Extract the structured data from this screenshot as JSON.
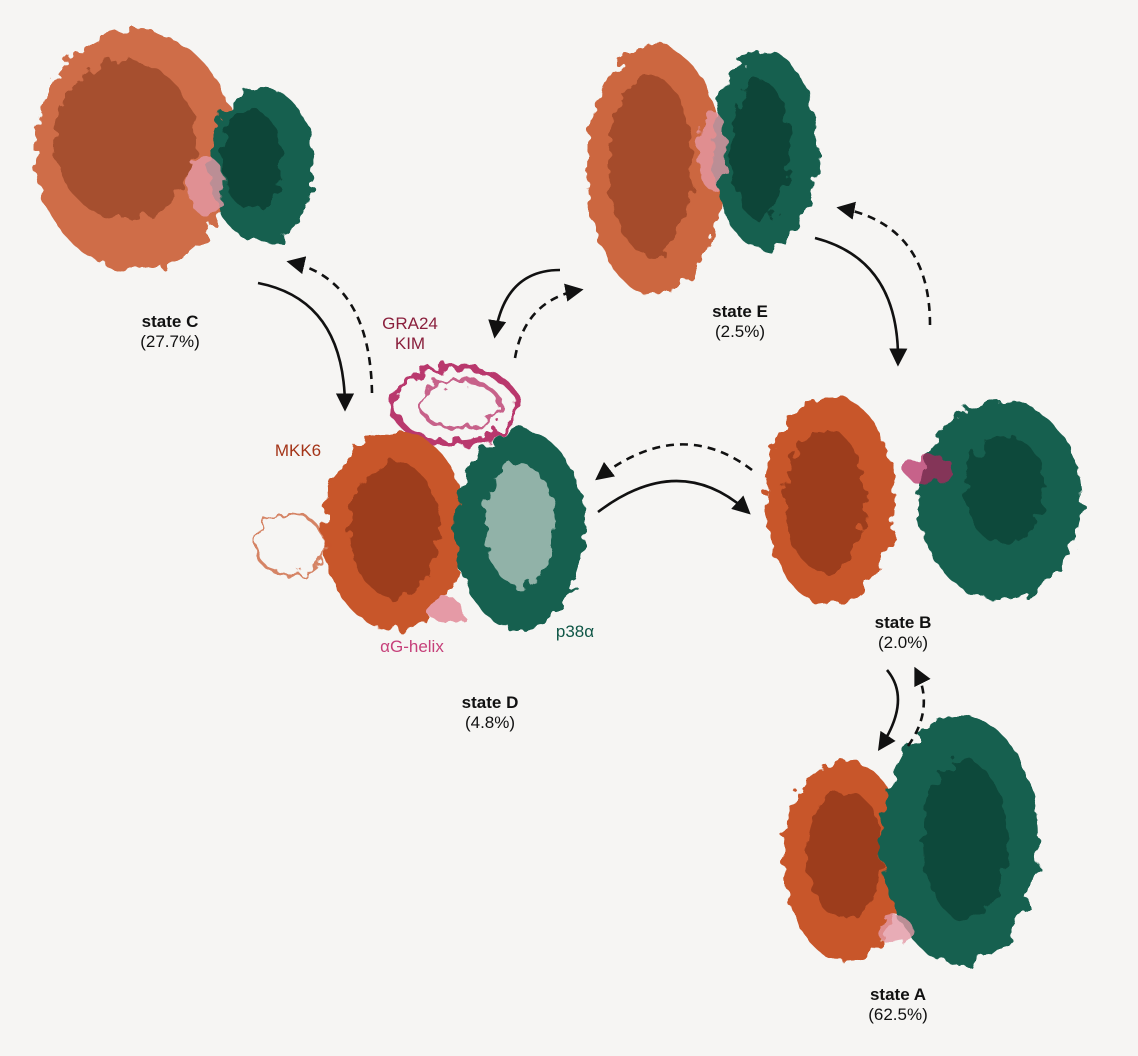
{
  "states": [
    {
      "id": "C",
      "name": "state C",
      "percent": "(27.7%)"
    },
    {
      "id": "E",
      "name": "state E",
      "percent": "(2.5%)"
    },
    {
      "id": "D",
      "name": "state D",
      "percent": "(4.8%)"
    },
    {
      "id": "B",
      "name": "state B",
      "percent": "(2.0%)"
    },
    {
      "id": "A",
      "name": "state A",
      "percent": "(62.5%)"
    }
  ],
  "component_labels": {
    "gra24_line1": "GRA24",
    "gra24_line2": "KIM",
    "mkk6": "MKK6",
    "alpha_g_helix": "αG-helix",
    "p38": "p38α"
  },
  "transitions": [
    {
      "from": "C",
      "to": "D",
      "style": "solid"
    },
    {
      "from": "D",
      "to": "C",
      "style": "dashed"
    },
    {
      "from": "E",
      "to": "D",
      "style": "solid"
    },
    {
      "from": "D",
      "to": "E",
      "style": "dashed"
    },
    {
      "from": "E",
      "to": "B",
      "style": "solid"
    },
    {
      "from": "B",
      "to": "E",
      "style": "dashed"
    },
    {
      "from": "D",
      "to": "B",
      "style": "solid"
    },
    {
      "from": "B",
      "to": "D",
      "style": "dashed"
    },
    {
      "from": "B",
      "to": "A",
      "style": "solid"
    },
    {
      "from": "A",
      "to": "B",
      "style": "dashed"
    }
  ],
  "colors": {
    "mkk6": "#c8562b",
    "mkk6_dark": "#7a2c14",
    "p38": "#17604f",
    "p38_dark": "#0b3a2f",
    "gra24": "#b3245e",
    "helix": "#e59aa6",
    "arrow": "#111111",
    "label_gra24": "#8a1f3c",
    "label_mkk6": "#a43418",
    "label_helix": "#c6407a",
    "label_p38": "#0f5646"
  }
}
